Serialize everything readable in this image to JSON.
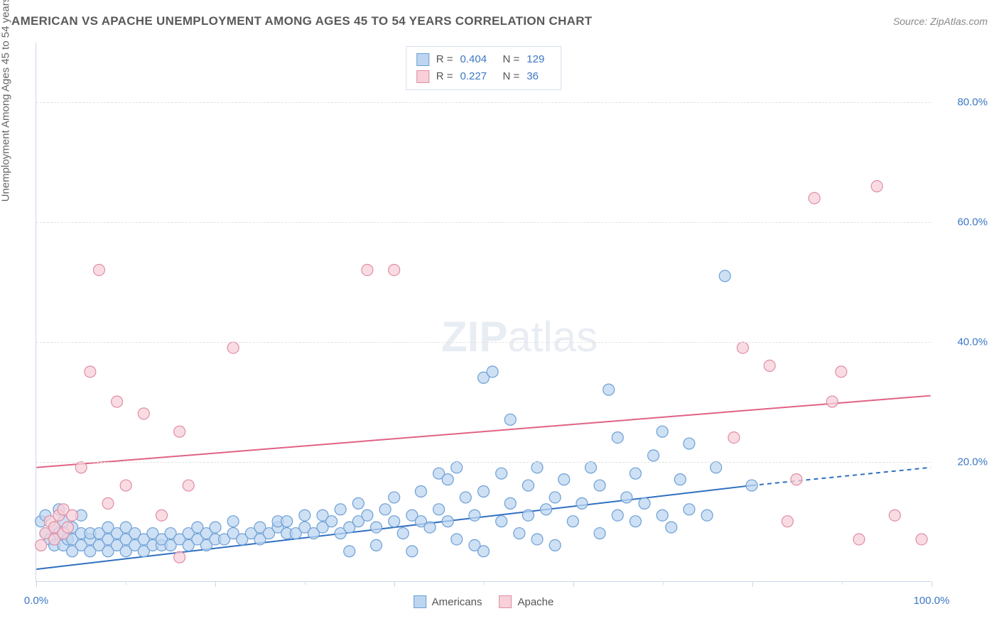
{
  "title": "AMERICAN VS APACHE UNEMPLOYMENT AMONG AGES 45 TO 54 YEARS CORRELATION CHART",
  "source": "Source: ZipAtlas.com",
  "ylabel": "Unemployment Among Ages 45 to 54 years",
  "watermark_bold": "ZIP",
  "watermark_light": "atlas",
  "chart": {
    "type": "scatter",
    "xlim": [
      0,
      100
    ],
    "ylim": [
      0,
      90
    ],
    "x_tick_major_step": 20,
    "x_tick_minor_step": 10,
    "x_tick_labels": [
      {
        "value": 0,
        "label": "0.0%"
      },
      {
        "value": 100,
        "label": "100.0%"
      }
    ],
    "y_ticks": [
      {
        "value": 20,
        "label": "20.0%"
      },
      {
        "value": 40,
        "label": "40.0%"
      },
      {
        "value": 60,
        "label": "60.0%"
      },
      {
        "value": 80,
        "label": "80.0%"
      }
    ],
    "background_color": "#ffffff",
    "grid_color": "#e3e3e3",
    "axis_color": "#c9d7e8",
    "marker_radius": 8,
    "marker_stroke_width": 1.2,
    "trend_line_width": 2,
    "series": [
      {
        "name": "Americans",
        "fill_color": "#bdd5f0",
        "stroke_color": "#6c9fd6",
        "line_color": "#2f6fc1",
        "R": "0.404",
        "N": "129",
        "trend": {
          "y_at_x0": 2,
          "y_at_x80": 16,
          "dashed_to_x": 100,
          "dashed_y": 19
        },
        "points": [
          [
            0.5,
            10
          ],
          [
            1,
            8
          ],
          [
            1,
            11
          ],
          [
            1.5,
            7
          ],
          [
            2,
            6
          ],
          [
            2,
            9
          ],
          [
            2.5,
            8
          ],
          [
            2.5,
            12
          ],
          [
            3,
            6
          ],
          [
            3,
            8
          ],
          [
            3,
            10
          ],
          [
            3.5,
            7
          ],
          [
            4,
            5
          ],
          [
            4,
            7
          ],
          [
            4,
            9
          ],
          [
            5,
            6
          ],
          [
            5,
            8
          ],
          [
            5,
            11
          ],
          [
            6,
            5
          ],
          [
            6,
            7
          ],
          [
            6,
            8
          ],
          [
            7,
            6
          ],
          [
            7,
            8
          ],
          [
            8,
            5
          ],
          [
            8,
            7
          ],
          [
            8,
            9
          ],
          [
            9,
            6
          ],
          [
            9,
            8
          ],
          [
            10,
            5
          ],
          [
            10,
            7
          ],
          [
            10,
            9
          ],
          [
            11,
            6
          ],
          [
            11,
            8
          ],
          [
            12,
            5
          ],
          [
            12,
            7
          ],
          [
            13,
            6
          ],
          [
            13,
            8
          ],
          [
            14,
            6
          ],
          [
            14,
            7
          ],
          [
            15,
            6
          ],
          [
            15,
            8
          ],
          [
            16,
            7
          ],
          [
            17,
            6
          ],
          [
            17,
            8
          ],
          [
            18,
            7
          ],
          [
            18,
            9
          ],
          [
            19,
            6
          ],
          [
            19,
            8
          ],
          [
            20,
            7
          ],
          [
            20,
            9
          ],
          [
            21,
            7
          ],
          [
            22,
            8
          ],
          [
            22,
            10
          ],
          [
            23,
            7
          ],
          [
            24,
            8
          ],
          [
            25,
            7
          ],
          [
            25,
            9
          ],
          [
            26,
            8
          ],
          [
            27,
            9
          ],
          [
            27,
            10
          ],
          [
            28,
            8
          ],
          [
            28,
            10
          ],
          [
            29,
            8
          ],
          [
            30,
            9
          ],
          [
            30,
            11
          ],
          [
            31,
            8
          ],
          [
            32,
            9
          ],
          [
            32,
            11
          ],
          [
            33,
            10
          ],
          [
            34,
            8
          ],
          [
            34,
            12
          ],
          [
            35,
            9
          ],
          [
            35,
            5
          ],
          [
            36,
            10
          ],
          [
            36,
            13
          ],
          [
            37,
            11
          ],
          [
            38,
            9
          ],
          [
            38,
            6
          ],
          [
            39,
            12
          ],
          [
            40,
            10
          ],
          [
            40,
            14
          ],
          [
            41,
            8
          ],
          [
            42,
            5
          ],
          [
            42,
            11
          ],
          [
            43,
            10
          ],
          [
            43,
            15
          ],
          [
            44,
            9
          ],
          [
            45,
            12
          ],
          [
            45,
            18
          ],
          [
            46,
            10
          ],
          [
            46,
            17
          ],
          [
            47,
            7
          ],
          [
            47,
            19
          ],
          [
            48,
            14
          ],
          [
            49,
            11
          ],
          [
            49,
            6
          ],
          [
            50,
            15
          ],
          [
            50,
            5
          ],
          [
            50,
            34
          ],
          [
            51,
            35
          ],
          [
            52,
            10
          ],
          [
            52,
            18
          ],
          [
            53,
            13
          ],
          [
            53,
            27
          ],
          [
            54,
            8
          ],
          [
            55,
            11
          ],
          [
            55,
            16
          ],
          [
            56,
            7
          ],
          [
            56,
            19
          ],
          [
            57,
            12
          ],
          [
            58,
            14
          ],
          [
            58,
            6
          ],
          [
            59,
            17
          ],
          [
            60,
            10
          ],
          [
            61,
            13
          ],
          [
            62,
            19
          ],
          [
            63,
            8
          ],
          [
            63,
            16
          ],
          [
            64,
            32
          ],
          [
            65,
            11
          ],
          [
            65,
            24
          ],
          [
            66,
            14
          ],
          [
            67,
            10
          ],
          [
            67,
            18
          ],
          [
            68,
            13
          ],
          [
            69,
            21
          ],
          [
            70,
            11
          ],
          [
            70,
            25
          ],
          [
            71,
            9
          ],
          [
            72,
            17
          ],
          [
            73,
            12
          ],
          [
            73,
            23
          ],
          [
            75,
            11
          ],
          [
            76,
            19
          ],
          [
            77,
            51
          ],
          [
            80,
            16
          ]
        ]
      },
      {
        "name": "Apache",
        "fill_color": "#f7d0d9",
        "stroke_color": "#e08da3",
        "line_color": "#e06284",
        "R": "0.227",
        "N": "36",
        "trend": {
          "y_at_x0": 19,
          "y_at_x100": 31
        },
        "points": [
          [
            0.5,
            6
          ],
          [
            1,
            8
          ],
          [
            1.5,
            10
          ],
          [
            2,
            7
          ],
          [
            2,
            9
          ],
          [
            2.5,
            11
          ],
          [
            3,
            8
          ],
          [
            3,
            12
          ],
          [
            3.5,
            9
          ],
          [
            4,
            11
          ],
          [
            5,
            19
          ],
          [
            6,
            35
          ],
          [
            7,
            52
          ],
          [
            8,
            13
          ],
          [
            9,
            30
          ],
          [
            10,
            16
          ],
          [
            12,
            28
          ],
          [
            14,
            11
          ],
          [
            16,
            25
          ],
          [
            16,
            4
          ],
          [
            17,
            16
          ],
          [
            22,
            39
          ],
          [
            37,
            52
          ],
          [
            40,
            52
          ],
          [
            78,
            24
          ],
          [
            79,
            39
          ],
          [
            82,
            36
          ],
          [
            84,
            10
          ],
          [
            85,
            17
          ],
          [
            87,
            64
          ],
          [
            89,
            30
          ],
          [
            90,
            35
          ],
          [
            92,
            7
          ],
          [
            94,
            66
          ],
          [
            96,
            11
          ],
          [
            99,
            7
          ]
        ]
      }
    ],
    "bottom_legend": [
      {
        "label": "Americans",
        "swatch_fill": "#bdd5f0",
        "swatch_stroke": "#6c9fd6"
      },
      {
        "label": "Apache",
        "swatch_fill": "#f7d0d9",
        "swatch_stroke": "#e08da3"
      }
    ]
  }
}
